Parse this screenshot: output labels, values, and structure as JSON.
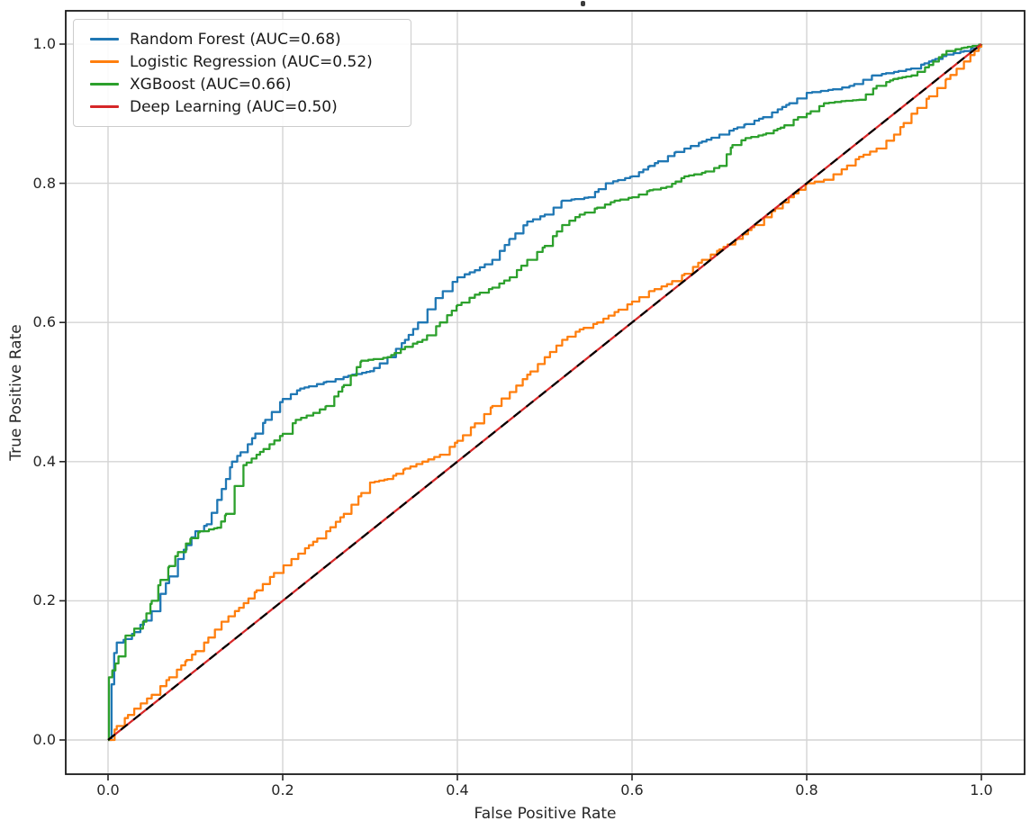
{
  "figure": {
    "background": "#ffffff"
  },
  "axes": {
    "xlabel": "False Positive Rate",
    "ylabel": "True Positive Rate",
    "x_ticks": [
      "0.0",
      "0.2",
      "0.4",
      "0.6",
      "0.8",
      "1.0"
    ],
    "y_ticks": [
      "0.0",
      "0.2",
      "0.4",
      "0.6",
      "0.8",
      "1.0"
    ],
    "grid_color": "#d4d4d4",
    "frame_color": "#1a1a1a",
    "tick_color": "#262626"
  },
  "legend": {
    "position": "upper left",
    "entries": [
      {
        "label": "Random Forest (AUC=0.68)",
        "color": "#1f77b4"
      },
      {
        "label": "Logistic Regression (AUC=0.52)",
        "color": "#ff7f0e"
      },
      {
        "label": "XGBoost (AUC=0.66)",
        "color": "#2ca02c"
      },
      {
        "label": "Deep Learning (AUC=0.50)",
        "color": "#d62728"
      }
    ]
  },
  "chart_data": {
    "type": "line",
    "subtype": "roc-curves",
    "title": "",
    "xlabel": "False Positive Rate",
    "ylabel": "True Positive Rate",
    "xlim": [
      0,
      1
    ],
    "ylim": [
      0,
      1
    ],
    "grid": true,
    "legend_position": "upper left",
    "series": [
      {
        "name": "Random Forest",
        "auc": 0.68,
        "label": "Random Forest (AUC=0.68)",
        "color": "#1f77b4",
        "stepped": true,
        "points": [
          [
            0,
            0
          ],
          [
            0.004,
            0.08
          ],
          [
            0.007,
            0.125
          ],
          [
            0.01,
            0.14
          ],
          [
            0.02,
            0.145
          ],
          [
            0.03,
            0.155
          ],
          [
            0.05,
            0.185
          ],
          [
            0.06,
            0.21
          ],
          [
            0.07,
            0.235
          ],
          [
            0.08,
            0.26
          ],
          [
            0.09,
            0.28
          ],
          [
            0.1,
            0.3
          ],
          [
            0.113,
            0.31
          ],
          [
            0.125,
            0.345
          ],
          [
            0.135,
            0.375
          ],
          [
            0.142,
            0.4
          ],
          [
            0.16,
            0.425
          ],
          [
            0.18,
            0.46
          ],
          [
            0.2,
            0.49
          ],
          [
            0.22,
            0.505
          ],
          [
            0.25,
            0.515
          ],
          [
            0.28,
            0.525
          ],
          [
            0.3,
            0.53
          ],
          [
            0.32,
            0.55
          ],
          [
            0.34,
            0.575
          ],
          [
            0.355,
            0.6
          ],
          [
            0.375,
            0.635
          ],
          [
            0.4,
            0.665
          ],
          [
            0.42,
            0.675
          ],
          [
            0.44,
            0.69
          ],
          [
            0.46,
            0.72
          ],
          [
            0.48,
            0.745
          ],
          [
            0.5,
            0.755
          ],
          [
            0.52,
            0.775
          ],
          [
            0.55,
            0.78
          ],
          [
            0.57,
            0.8
          ],
          [
            0.6,
            0.81
          ],
          [
            0.62,
            0.825
          ],
          [
            0.65,
            0.845
          ],
          [
            0.68,
            0.86
          ],
          [
            0.7,
            0.87
          ],
          [
            0.73,
            0.885
          ],
          [
            0.75,
            0.895
          ],
          [
            0.78,
            0.915
          ],
          [
            0.8,
            0.93
          ],
          [
            0.83,
            0.935
          ],
          [
            0.85,
            0.94
          ],
          [
            0.875,
            0.955
          ],
          [
            0.9,
            0.96
          ],
          [
            0.92,
            0.965
          ],
          [
            0.94,
            0.975
          ],
          [
            0.96,
            0.985
          ],
          [
            0.98,
            0.99
          ],
          [
            1,
            1
          ]
        ]
      },
      {
        "name": "Logistic Regression",
        "auc": 0.52,
        "label": "Logistic Regression (AUC=0.52)",
        "color": "#ff7f0e",
        "stepped": true,
        "points": [
          [
            0,
            0
          ],
          [
            0.01,
            0.02
          ],
          [
            0.03,
            0.045
          ],
          [
            0.05,
            0.065
          ],
          [
            0.07,
            0.09
          ],
          [
            0.09,
            0.115
          ],
          [
            0.11,
            0.14
          ],
          [
            0.13,
            0.17
          ],
          [
            0.15,
            0.19
          ],
          [
            0.17,
            0.215
          ],
          [
            0.19,
            0.24
          ],
          [
            0.21,
            0.26
          ],
          [
            0.23,
            0.28
          ],
          [
            0.25,
            0.3
          ],
          [
            0.27,
            0.325
          ],
          [
            0.29,
            0.355
          ],
          [
            0.3,
            0.37
          ],
          [
            0.32,
            0.375
          ],
          [
            0.34,
            0.39
          ],
          [
            0.36,
            0.4
          ],
          [
            0.38,
            0.41
          ],
          [
            0.4,
            0.43
          ],
          [
            0.42,
            0.455
          ],
          [
            0.44,
            0.48
          ],
          [
            0.46,
            0.5
          ],
          [
            0.48,
            0.525
          ],
          [
            0.5,
            0.55
          ],
          [
            0.52,
            0.575
          ],
          [
            0.54,
            0.59
          ],
          [
            0.56,
            0.6
          ],
          [
            0.58,
            0.615
          ],
          [
            0.6,
            0.63
          ],
          [
            0.62,
            0.645
          ],
          [
            0.64,
            0.655
          ],
          [
            0.66,
            0.67
          ],
          [
            0.68,
            0.69
          ],
          [
            0.7,
            0.705
          ],
          [
            0.72,
            0.72
          ],
          [
            0.74,
            0.74
          ],
          [
            0.76,
            0.76
          ],
          [
            0.78,
            0.78
          ],
          [
            0.8,
            0.8
          ],
          [
            0.82,
            0.805
          ],
          [
            0.84,
            0.82
          ],
          [
            0.86,
            0.838
          ],
          [
            0.88,
            0.85
          ],
          [
            0.9,
            0.87
          ],
          [
            0.92,
            0.9
          ],
          [
            0.94,
            0.925
          ],
          [
            0.96,
            0.95
          ],
          [
            0.98,
            0.975
          ],
          [
            1,
            1
          ]
        ]
      },
      {
        "name": "XGBoost",
        "auc": 0.66,
        "label": "XGBoost (AUC=0.66)",
        "color": "#2ca02c",
        "stepped": true,
        "points": [
          [
            0,
            0
          ],
          [
            0.001,
            0.09
          ],
          [
            0.005,
            0.1
          ],
          [
            0.012,
            0.12
          ],
          [
            0.02,
            0.15
          ],
          [
            0.03,
            0.16
          ],
          [
            0.04,
            0.17
          ],
          [
            0.05,
            0.2
          ],
          [
            0.06,
            0.23
          ],
          [
            0.07,
            0.25
          ],
          [
            0.08,
            0.27
          ],
          [
            0.095,
            0.29
          ],
          [
            0.105,
            0.3
          ],
          [
            0.125,
            0.305
          ],
          [
            0.135,
            0.325
          ],
          [
            0.145,
            0.365
          ],
          [
            0.155,
            0.395
          ],
          [
            0.17,
            0.41
          ],
          [
            0.185,
            0.425
          ],
          [
            0.2,
            0.44
          ],
          [
            0.215,
            0.46
          ],
          [
            0.235,
            0.47
          ],
          [
            0.25,
            0.48
          ],
          [
            0.27,
            0.51
          ],
          [
            0.29,
            0.545
          ],
          [
            0.32,
            0.55
          ],
          [
            0.34,
            0.565
          ],
          [
            0.36,
            0.575
          ],
          [
            0.38,
            0.6
          ],
          [
            0.4,
            0.625
          ],
          [
            0.42,
            0.64
          ],
          [
            0.44,
            0.65
          ],
          [
            0.46,
            0.665
          ],
          [
            0.48,
            0.69
          ],
          [
            0.5,
            0.71
          ],
          [
            0.52,
            0.74
          ],
          [
            0.54,
            0.755
          ],
          [
            0.56,
            0.765
          ],
          [
            0.58,
            0.775
          ],
          [
            0.6,
            0.78
          ],
          [
            0.62,
            0.79
          ],
          [
            0.64,
            0.795
          ],
          [
            0.66,
            0.81
          ],
          [
            0.68,
            0.815
          ],
          [
            0.7,
            0.825
          ],
          [
            0.715,
            0.855
          ],
          [
            0.73,
            0.865
          ],
          [
            0.75,
            0.87
          ],
          [
            0.77,
            0.88
          ],
          [
            0.79,
            0.895
          ],
          [
            0.8,
            0.9
          ],
          [
            0.82,
            0.915
          ],
          [
            0.84,
            0.918
          ],
          [
            0.86,
            0.92
          ],
          [
            0.88,
            0.94
          ],
          [
            0.9,
            0.95
          ],
          [
            0.92,
            0.955
          ],
          [
            0.94,
            0.97
          ],
          [
            0.96,
            0.99
          ],
          [
            0.98,
            0.995
          ],
          [
            1,
            1
          ]
        ]
      },
      {
        "name": "Deep Learning",
        "auc": 0.5,
        "label": "Deep Learning (AUC=0.50)",
        "color": "#d62728",
        "stepped": false,
        "points": [
          [
            0,
            0
          ],
          [
            1,
            1
          ]
        ]
      }
    ],
    "reference_line": {
      "name": "chance-diagonal",
      "color": "#000000",
      "dash": [
        10,
        8
      ],
      "points": [
        [
          0,
          0
        ],
        [
          1,
          1
        ]
      ]
    }
  }
}
